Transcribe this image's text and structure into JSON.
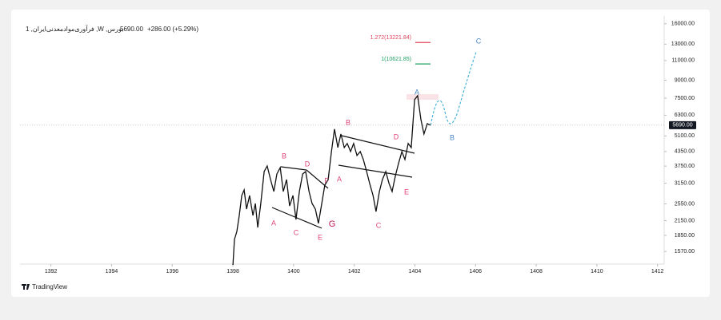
{
  "chart_data": {
    "type": "line",
    "title": "1 ,فرآوری‌موادمعدنی‌ایران ,W ,بورس",
    "last_price": {
      "value": 5690,
      "label": "5690.00"
    },
    "change": "+286.00 (+5.29%)",
    "brand": "TradingView",
    "log_scale": true,
    "color": "#111111",
    "x": [
      1398.0,
      1398.05,
      1398.13,
      1398.21,
      1398.29,
      1398.37,
      1398.45,
      1398.55,
      1398.66,
      1398.74,
      1398.82,
      1398.92,
      1399.03,
      1399.13,
      1399.24,
      1399.35,
      1399.45,
      1399.56,
      1399.66,
      1399.77,
      1399.87,
      1399.98,
      1400.08,
      1400.19,
      1400.3,
      1400.4,
      1400.51,
      1400.61,
      1400.72,
      1400.82,
      1400.93,
      1401.03,
      1401.14,
      1401.25,
      1401.35,
      1401.46,
      1401.56,
      1401.67,
      1401.77,
      1401.88,
      1401.98,
      1402.09,
      1402.2,
      1402.3,
      1402.41,
      1402.51,
      1402.62,
      1402.72,
      1402.83,
      1402.93,
      1403.04,
      1403.15,
      1403.25,
      1403.36,
      1403.46,
      1403.57,
      1403.67,
      1403.78,
      1403.88,
      1403.99,
      1404.09,
      1404.2,
      1404.3,
      1404.41,
      1404.52
    ],
    "values": [
      1368,
      1775,
      1926,
      2267,
      2777,
      2940,
      2419,
      2777,
      2267,
      2561,
      2004,
      2561,
      3545,
      3754,
      3270,
      2893,
      3461,
      3694,
      2893,
      3270,
      2497,
      2777,
      2176,
      2893,
      3461,
      3545,
      2893,
      2561,
      2419,
      2089,
      2561,
      3088,
      3270,
      4349,
      5465,
      4531,
      5203,
      4531,
      4720,
      4349,
      4720,
      4175,
      4349,
      4011,
      3545,
      3137,
      2777,
      2359,
      2893,
      3270,
      3545,
      3137,
      2893,
      3406,
      3849,
      4349,
      4011,
      4720,
      4531,
      7380,
      7690,
      6026,
      5203,
      5783,
      5690
    ],
    "xlim": [
      1390.98,
      1412.22
    ],
    "ylim": [
      1391,
      17330
    ],
    "xticks": [
      1392,
      1394,
      1396,
      1398,
      1400,
      1402,
      1404,
      1406,
      1408,
      1410,
      1412
    ],
    "yticks": [
      {
        "value": 1570,
        "label": "1570.00"
      },
      {
        "value": 1850,
        "label": "1850.00"
      },
      {
        "value": 2150,
        "label": "2150.00"
      },
      {
        "value": 2550,
        "label": "2550.00"
      },
      {
        "value": 3150,
        "label": "3150.00"
      },
      {
        "value": 3750,
        "label": "3750.00"
      },
      {
        "value": 4350,
        "label": "4350.00"
      },
      {
        "value": 5100,
        "label": "5100.00"
      },
      {
        "value": 6300,
        "label": "6300.00"
      },
      {
        "value": 7500,
        "label": "7500.00"
      },
      {
        "value": 9000,
        "label": "9000.00"
      },
      {
        "value": 11000,
        "label": "11000.00"
      },
      {
        "value": 13000,
        "label": "13000.00"
      },
      {
        "value": 16000,
        "label": "16000.00"
      }
    ],
    "levels": [
      {
        "value": 13221.84,
        "label": "1.272(13221.84)",
        "color": "#e0455c"
      },
      {
        "value": 10621.85,
        "label": "1(10621.85)",
        "color": "#1e9e63"
      }
    ],
    "wave_labels": [
      {
        "text": "A",
        "color": "#e0457b"
      },
      {
        "text": "B",
        "color": "#e0457b"
      },
      {
        "text": "C",
        "color": "#e0457b"
      },
      {
        "text": "D",
        "color": "#e0457b"
      },
      {
        "text": "E",
        "color": "#e0457b"
      },
      {
        "text": "F",
        "color": "#e0457b"
      },
      {
        "text": "G",
        "color": "#c2185b"
      },
      {
        "text": "A",
        "color": "#e0457b"
      },
      {
        "text": "B",
        "color": "#e0457b"
      },
      {
        "text": "C",
        "color": "#e0457b"
      },
      {
        "text": "D",
        "color": "#e0457b"
      },
      {
        "text": "E",
        "color": "#e0457b"
      },
      {
        "text": "A",
        "color": "#4a86c5"
      },
      {
        "text": "B",
        "color": "#4a86c5"
      },
      {
        "text": "C",
        "color": "#4a86c5"
      }
    ]
  }
}
